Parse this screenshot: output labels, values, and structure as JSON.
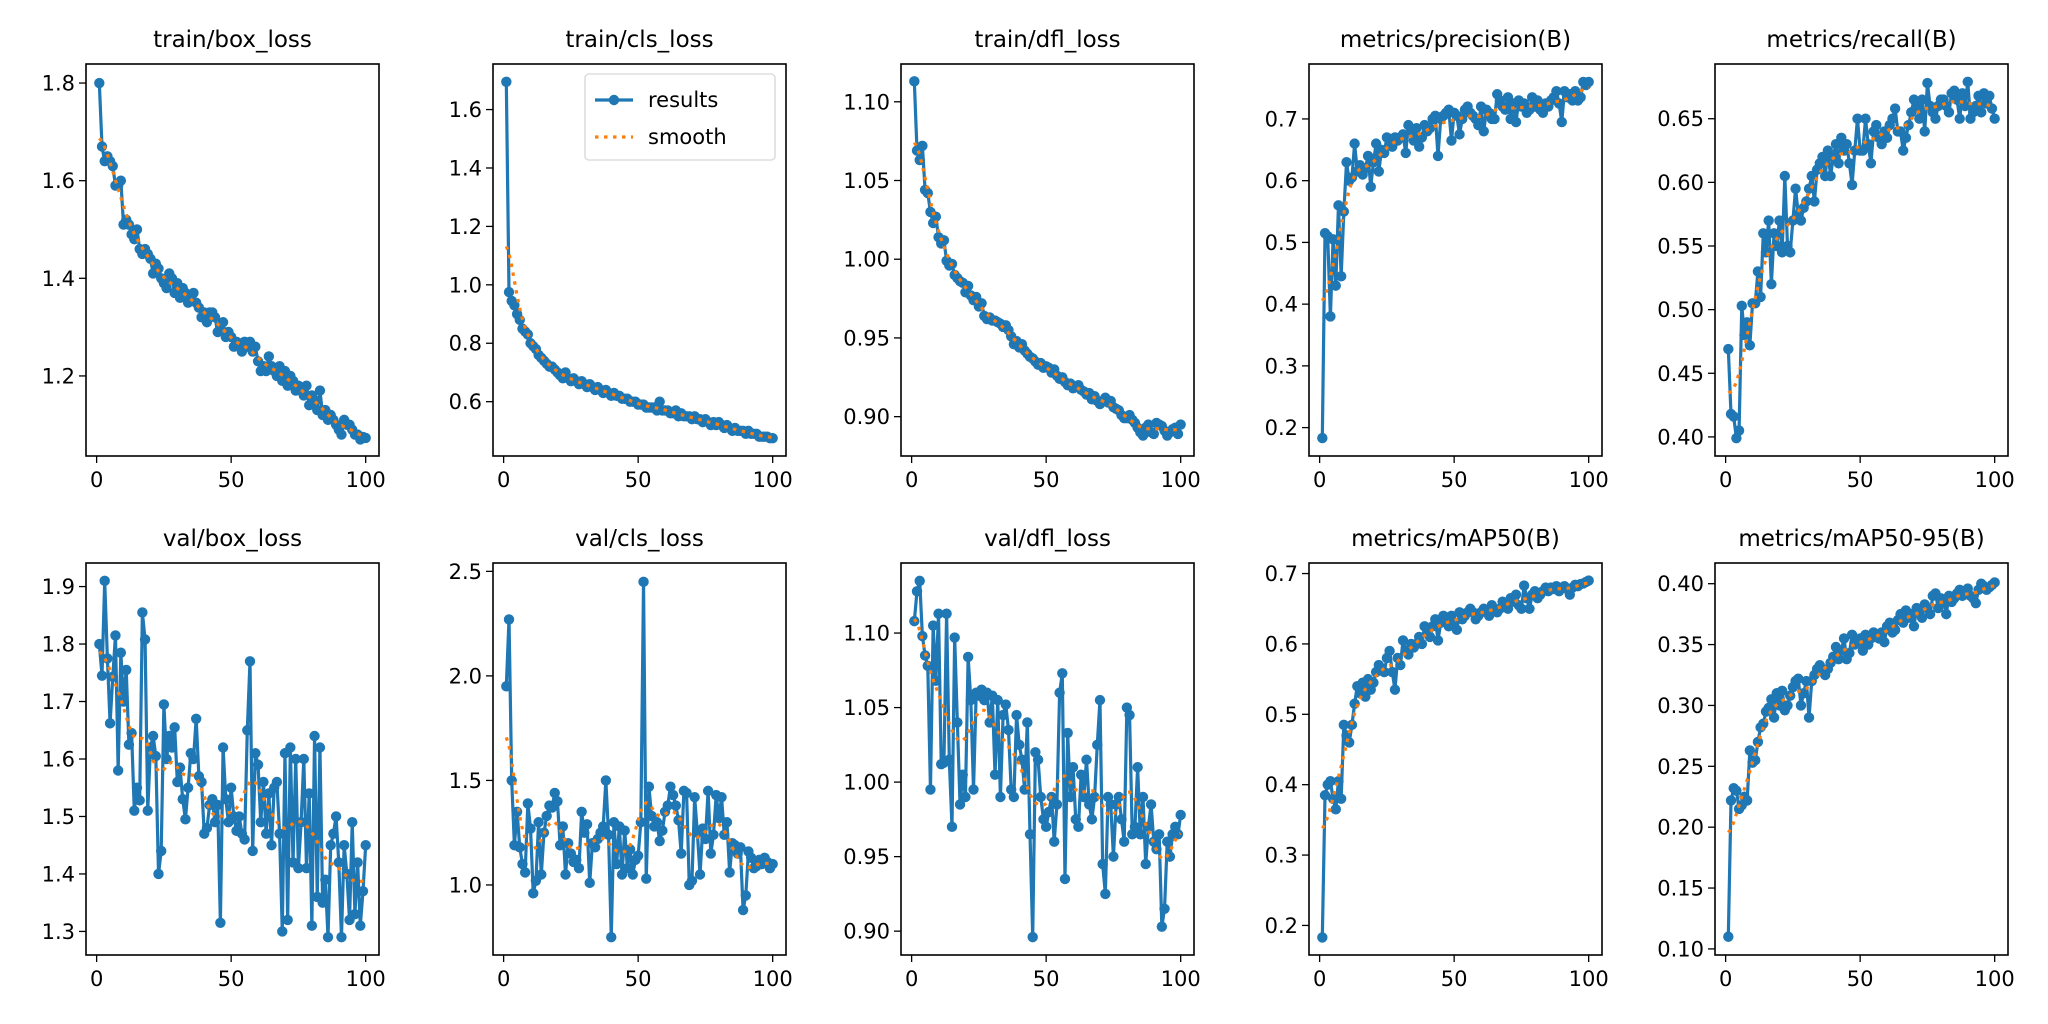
{
  "colors": {
    "results": "#1f77b4",
    "smooth": "#ff7f0e"
  },
  "legend": {
    "results_label": "results",
    "smooth_label": "smooth",
    "placement": "upper-right of train/cls_loss"
  },
  "chart_data": [
    {
      "type": "line",
      "title": "train/box_loss",
      "xlim": [
        -3.95,
        104.95
      ],
      "ylim": [
        1.036,
        1.839
      ],
      "xticks": [
        0,
        50,
        100
      ],
      "yticks": [
        1.2,
        1.4,
        1.6,
        1.8
      ],
      "ytick_labels": [
        "1.2",
        "1.4",
        "1.6",
        "1.8"
      ],
      "grid": false,
      "results": [
        1.8,
        1.67,
        1.64,
        1.65,
        1.64,
        1.63,
        1.59,
        1.59,
        1.6,
        1.51,
        1.52,
        1.51,
        1.49,
        1.48,
        1.5,
        1.46,
        1.45,
        1.46,
        1.45,
        1.44,
        1.41,
        1.43,
        1.42,
        1.4,
        1.39,
        1.38,
        1.41,
        1.4,
        1.37,
        1.39,
        1.36,
        1.38,
        1.37,
        1.35,
        1.36,
        1.37,
        1.35,
        1.34,
        1.32,
        1.33,
        1.31,
        1.33,
        1.33,
        1.32,
        1.29,
        1.3,
        1.31,
        1.28,
        1.29,
        1.28,
        1.26,
        1.27,
        1.26,
        1.25,
        1.27,
        1.26,
        1.27,
        1.25,
        1.26,
        1.23,
        1.21,
        1.22,
        1.21,
        1.24,
        1.22,
        1.21,
        1.2,
        1.22,
        1.19,
        1.21,
        1.18,
        1.2,
        1.19,
        1.17,
        1.18,
        1.17,
        1.16,
        1.18,
        1.14,
        1.16,
        1.15,
        1.13,
        1.17,
        1.12,
        1.13,
        1.11,
        1.12,
        1.11,
        1.1,
        1.09,
        1.08,
        1.11,
        1.1,
        1.1,
        1.09,
        1.08,
        1.08,
        1.07,
        1.075,
        1.073
      ]
    },
    {
      "type": "line",
      "title": "train/cls_loss",
      "xlim": [
        -3.95,
        104.95
      ],
      "ylim": [
        0.414,
        1.756
      ],
      "xticks": [
        0,
        50,
        100
      ],
      "yticks": [
        0.6,
        0.8,
        1.0,
        1.2,
        1.4,
        1.6
      ],
      "ytick_labels": [
        "0.6",
        "0.8",
        "1.0",
        "1.2",
        "1.4",
        "1.6"
      ],
      "grid": false,
      "legend": true,
      "results": [
        1.695,
        0.975,
        0.945,
        0.93,
        0.9,
        0.88,
        0.85,
        0.84,
        0.83,
        0.8,
        0.79,
        0.78,
        0.76,
        0.75,
        0.74,
        0.73,
        0.72,
        0.72,
        0.71,
        0.7,
        0.69,
        0.68,
        0.7,
        0.68,
        0.67,
        0.68,
        0.67,
        0.66,
        0.67,
        0.66,
        0.65,
        0.66,
        0.65,
        0.64,
        0.65,
        0.64,
        0.63,
        0.64,
        0.63,
        0.62,
        0.63,
        0.62,
        0.62,
        0.61,
        0.61,
        0.61,
        0.6,
        0.6,
        0.6,
        0.59,
        0.59,
        0.59,
        0.58,
        0.58,
        0.58,
        0.58,
        0.57,
        0.6,
        0.57,
        0.57,
        0.57,
        0.56,
        0.56,
        0.57,
        0.55,
        0.56,
        0.55,
        0.55,
        0.55,
        0.54,
        0.55,
        0.54,
        0.54,
        0.53,
        0.54,
        0.53,
        0.52,
        0.53,
        0.52,
        0.53,
        0.52,
        0.51,
        0.52,
        0.51,
        0.5,
        0.51,
        0.5,
        0.5,
        0.5,
        0.49,
        0.5,
        0.49,
        0.49,
        0.49,
        0.48,
        0.48,
        0.48,
        0.48,
        0.475,
        0.475
      ]
    },
    {
      "type": "line",
      "title": "train/dfl_loss",
      "xlim": [
        -3.95,
        104.95
      ],
      "ylim": [
        0.875,
        1.124
      ],
      "xticks": [
        0,
        50,
        100
      ],
      "yticks": [
        0.9,
        0.95,
        1.0,
        1.05,
        1.1
      ],
      "ytick_labels": [
        "0.90",
        "0.95",
        "1.00",
        "1.05",
        "1.10"
      ],
      "grid": false,
      "results": [
        1.113,
        1.069,
        1.063,
        1.072,
        1.044,
        1.042,
        1.03,
        1.023,
        1.027,
        1.014,
        1.01,
        1.012,
        0.999,
        0.996,
        0.997,
        0.99,
        0.988,
        0.986,
        0.985,
        0.979,
        0.983,
        0.977,
        0.974,
        0.976,
        0.97,
        0.972,
        0.964,
        0.962,
        0.963,
        0.961,
        0.961,
        0.96,
        0.959,
        0.957,
        0.958,
        0.955,
        0.951,
        0.946,
        0.948,
        0.944,
        0.946,
        0.942,
        0.94,
        0.938,
        0.937,
        0.935,
        0.933,
        0.934,
        0.931,
        0.932,
        0.931,
        0.928,
        0.93,
        0.926,
        0.924,
        0.925,
        0.922,
        0.92,
        0.921,
        0.918,
        0.919,
        0.92,
        0.917,
        0.916,
        0.914,
        0.915,
        0.911,
        0.913,
        0.91,
        0.908,
        0.91,
        0.912,
        0.909,
        0.91,
        0.906,
        0.905,
        0.904,
        0.901,
        0.899,
        0.899,
        0.901,
        0.898,
        0.896,
        0.893,
        0.89,
        0.888,
        0.893,
        0.895,
        0.89,
        0.889,
        0.896,
        0.895,
        0.894,
        0.891,
        0.888,
        0.89,
        0.892,
        0.893,
        0.889,
        0.895
      ]
    },
    {
      "type": "line",
      "title": "metrics/precision(B)",
      "xlim": [
        -3.95,
        104.95
      ],
      "ylim": [
        0.154,
        0.789
      ],
      "xticks": [
        0,
        50,
        100
      ],
      "yticks": [
        0.2,
        0.3,
        0.4,
        0.5,
        0.6,
        0.7
      ],
      "ytick_labels": [
        "0.2",
        "0.3",
        "0.4",
        "0.5",
        "0.6",
        "0.7"
      ],
      "grid": false,
      "results": [
        0.183,
        0.515,
        0.51,
        0.38,
        0.505,
        0.43,
        0.56,
        0.445,
        0.55,
        0.63,
        0.6,
        0.605,
        0.66,
        0.615,
        0.625,
        0.61,
        0.62,
        0.64,
        0.59,
        0.63,
        0.66,
        0.615,
        0.65,
        0.645,
        0.67,
        0.66,
        0.655,
        0.67,
        0.665,
        0.67,
        0.675,
        0.645,
        0.69,
        0.68,
        0.665,
        0.685,
        0.655,
        0.67,
        0.69,
        0.68,
        0.685,
        0.7,
        0.705,
        0.64,
        0.7,
        0.705,
        0.71,
        0.715,
        0.665,
        0.71,
        0.705,
        0.675,
        0.7,
        0.715,
        0.72,
        0.71,
        0.705,
        0.7,
        0.69,
        0.72,
        0.68,
        0.715,
        0.71,
        0.7,
        0.7,
        0.74,
        0.73,
        0.72,
        0.715,
        0.735,
        0.7,
        0.725,
        0.695,
        0.73,
        0.72,
        0.725,
        0.71,
        0.715,
        0.735,
        0.72,
        0.73,
        0.715,
        0.71,
        0.725,
        0.72,
        0.73,
        0.735,
        0.745,
        0.725,
        0.695,
        0.745,
        0.735,
        0.74,
        0.73,
        0.745,
        0.73,
        0.735,
        0.76,
        0.755,
        0.76
      ]
    },
    {
      "type": "line",
      "title": "metrics/recall(B)",
      "xlim": [
        -3.95,
        104.95
      ],
      "ylim": [
        0.385,
        0.693
      ],
      "xticks": [
        0,
        50,
        100
      ],
      "yticks": [
        0.4,
        0.45,
        0.5,
        0.55,
        0.6,
        0.65
      ],
      "ytick_labels": [
        "0.40",
        "0.45",
        "0.50",
        "0.55",
        "0.60",
        "0.65"
      ],
      "grid": false,
      "results": [
        0.469,
        0.418,
        0.416,
        0.399,
        0.405,
        0.503,
        0.48,
        0.49,
        0.472,
        0.505,
        0.505,
        0.53,
        0.51,
        0.56,
        0.545,
        0.57,
        0.52,
        0.56,
        0.55,
        0.57,
        0.545,
        0.605,
        0.55,
        0.545,
        0.57,
        0.595,
        0.575,
        0.57,
        0.58,
        0.585,
        0.595,
        0.605,
        0.585,
        0.61,
        0.615,
        0.62,
        0.605,
        0.625,
        0.605,
        0.62,
        0.63,
        0.615,
        0.635,
        0.625,
        0.63,
        0.615,
        0.598,
        0.625,
        0.65,
        0.625,
        0.625,
        0.65,
        0.63,
        0.615,
        0.64,
        0.645,
        0.635,
        0.63,
        0.64,
        0.635,
        0.645,
        0.65,
        0.658,
        0.64,
        0.64,
        0.625,
        0.635,
        0.645,
        0.655,
        0.665,
        0.66,
        0.65,
        0.665,
        0.64,
        0.678,
        0.66,
        0.655,
        0.65,
        0.66,
        0.665,
        0.665,
        0.66,
        0.655,
        0.67,
        0.672,
        0.665,
        0.65,
        0.67,
        0.66,
        0.679,
        0.65,
        0.655,
        0.66,
        0.668,
        0.655,
        0.67,
        0.662,
        0.668,
        0.658,
        0.65
      ]
    },
    {
      "type": "line",
      "title": "val/box_loss",
      "xlim": [
        -3.95,
        104.95
      ],
      "ylim": [
        1.259,
        1.941
      ],
      "xticks": [
        0,
        50,
        100
      ],
      "yticks": [
        1.3,
        1.4,
        1.5,
        1.6,
        1.7,
        1.8,
        1.9
      ],
      "ytick_labels": [
        "1.3",
        "1.4",
        "1.5",
        "1.6",
        "1.7",
        "1.8",
        "1.9"
      ],
      "grid": false,
      "results": [
        1.8,
        1.745,
        1.91,
        1.775,
        1.662,
        1.743,
        1.815,
        1.58,
        1.785,
        1.7,
        1.755,
        1.625,
        1.645,
        1.51,
        1.55,
        1.528,
        1.855,
        1.808,
        1.51,
        1.62,
        1.64,
        1.605,
        1.4,
        1.44,
        1.695,
        1.6,
        1.64,
        1.62,
        1.655,
        1.56,
        1.585,
        1.53,
        1.495,
        1.55,
        1.61,
        1.6,
        1.67,
        1.57,
        1.56,
        1.47,
        1.48,
        1.52,
        1.53,
        1.49,
        1.52,
        1.315,
        1.62,
        1.53,
        1.49,
        1.55,
        1.5,
        1.475,
        1.5,
        1.47,
        1.46,
        1.65,
        1.77,
        1.44,
        1.61,
        1.59,
        1.49,
        1.56,
        1.47,
        1.54,
        1.45,
        1.55,
        1.56,
        1.47,
        1.3,
        1.61,
        1.32,
        1.62,
        1.42,
        1.6,
        1.41,
        1.49,
        1.6,
        1.41,
        1.54,
        1.31,
        1.64,
        1.36,
        1.62,
        1.35,
        1.39,
        1.29,
        1.45,
        1.47,
        1.5,
        1.42,
        1.29,
        1.45,
        1.4,
        1.32,
        1.49,
        1.33,
        1.42,
        1.31,
        1.37,
        1.45
      ]
    },
    {
      "type": "line",
      "title": "val/cls_loss",
      "xlim": [
        -3.95,
        104.95
      ],
      "ylim": [
        0.665,
        2.54
      ],
      "xticks": [
        0,
        50,
        100
      ],
      "yticks": [
        1.0,
        1.5,
        2.0,
        2.5
      ],
      "ytick_labels": [
        "1.0",
        "1.5",
        "2.0",
        "2.5"
      ],
      "grid": false,
      "results": [
        1.95,
        2.27,
        1.5,
        1.19,
        1.35,
        1.18,
        1.1,
        1.06,
        1.39,
        1.27,
        0.96,
        1.02,
        1.3,
        1.05,
        1.25,
        1.33,
        1.38,
        1.37,
        1.44,
        1.4,
        1.19,
        1.28,
        1.05,
        1.2,
        1.15,
        1.11,
        1.12,
        1.08,
        1.35,
        1.25,
        1.29,
        1.01,
        1.2,
        1.18,
        1.22,
        1.25,
        1.28,
        1.5,
        1.24,
        0.75,
        1.3,
        1.1,
        1.28,
        1.05,
        1.26,
        1.08,
        1.17,
        1.05,
        1.12,
        1.14,
        1.3,
        2.45,
        1.03,
        1.47,
        1.33,
        1.28,
        1.3,
        1.21,
        1.26,
        1.35,
        1.38,
        1.47,
        1.43,
        1.38,
        1.31,
        1.15,
        1.45,
        1.44,
        1.0,
        1.02,
        1.42,
        1.25,
        1.05,
        1.27,
        1.22,
        1.45,
        1.15,
        1.24,
        1.43,
        1.32,
        1.42,
        1.24,
        1.3,
        1.06,
        1.2,
        1.19,
        1.15,
        1.18,
        0.88,
        0.95,
        1.16,
        1.13,
        1.08,
        1.09,
        1.12,
        1.1,
        1.13,
        1.11,
        1.08,
        1.1
      ]
    },
    {
      "type": "line",
      "title": "val/dfl_loss",
      "xlim": [
        -3.95,
        104.95
      ],
      "ylim": [
        0.884,
        1.147
      ],
      "xticks": [
        0,
        50,
        100
      ],
      "yticks": [
        0.9,
        0.95,
        1.0,
        1.05,
        1.1
      ],
      "ytick_labels": [
        "0.90",
        "0.95",
        "1.00",
        "1.05",
        "1.10"
      ],
      "grid": false,
      "results": [
        1.108,
        1.128,
        1.135,
        1.098,
        1.085,
        1.078,
        0.995,
        1.105,
        1.068,
        1.113,
        1.012,
        1.013,
        1.113,
        1.015,
        0.97,
        1.097,
        1.04,
        0.985,
        1.005,
        0.99,
        1.084,
        1.055,
        0.995,
        1.06,
        1.058,
        1.062,
        1.055,
        1.06,
        1.04,
        1.058,
        1.005,
        1.055,
        0.99,
        1.045,
        1.052,
        1.035,
        0.995,
        0.99,
        1.045,
        1.025,
        1.015,
        0.995,
        1.04,
        0.965,
        0.896,
        1.02,
        1.015,
        0.99,
        0.975,
        0.97,
        0.98,
        0.99,
        0.96,
        0.985,
        1.06,
        1.073,
        0.935,
        1.033,
        0.99,
        1.01,
        0.975,
        0.97,
        1.005,
        0.99,
        1.015,
        0.985,
        0.975,
        0.99,
        1.025,
        1.055,
        0.945,
        0.925,
        0.99,
        0.985,
        0.95,
        0.985,
        0.99,
        0.975,
        0.96,
        1.05,
        1.045,
        0.965,
        0.97,
        1.01,
        0.965,
        0.99,
        0.945,
        0.97,
        0.985,
        0.96,
        0.955,
        0.965,
        0.903,
        0.915,
        0.96,
        0.95,
        0.965,
        0.97,
        0.965,
        0.978
      ]
    },
    {
      "type": "line",
      "title": "metrics/mAP50(B)",
      "xlim": [
        -3.95,
        104.95
      ],
      "ylim": [
        0.158,
        0.715
      ],
      "xticks": [
        0,
        50,
        100
      ],
      "yticks": [
        0.2,
        0.3,
        0.4,
        0.5,
        0.6,
        0.7
      ],
      "ytick_labels": [
        "0.2",
        "0.3",
        "0.4",
        "0.5",
        "0.6",
        "0.7"
      ],
      "grid": false,
      "results": [
        0.183,
        0.385,
        0.4,
        0.405,
        0.38,
        0.365,
        0.405,
        0.38,
        0.485,
        0.47,
        0.46,
        0.485,
        0.515,
        0.54,
        0.53,
        0.545,
        0.525,
        0.55,
        0.535,
        0.545,
        0.56,
        0.57,
        0.565,
        0.56,
        0.58,
        0.59,
        0.56,
        0.535,
        0.58,
        0.57,
        0.605,
        0.59,
        0.585,
        0.6,
        0.595,
        0.6,
        0.61,
        0.6,
        0.625,
        0.615,
        0.61,
        0.625,
        0.635,
        0.605,
        0.63,
        0.64,
        0.635,
        0.625,
        0.64,
        0.63,
        0.62,
        0.645,
        0.635,
        0.64,
        0.645,
        0.65,
        0.645,
        0.635,
        0.64,
        0.645,
        0.65,
        0.645,
        0.64,
        0.655,
        0.65,
        0.645,
        0.65,
        0.66,
        0.655,
        0.65,
        0.665,
        0.66,
        0.67,
        0.655,
        0.65,
        0.683,
        0.665,
        0.65,
        0.67,
        0.675,
        0.665,
        0.67,
        0.675,
        0.68,
        0.675,
        0.68,
        0.678,
        0.682,
        0.675,
        0.68,
        0.682,
        0.678,
        0.67,
        0.68,
        0.684,
        0.682,
        0.685,
        0.686,
        0.688,
        0.69
      ]
    },
    {
      "type": "line",
      "title": "metrics/mAP50-95(B)",
      "xlim": [
        -3.95,
        104.95
      ],
      "ylim": [
        0.095,
        0.417
      ],
      "xticks": [
        0,
        50,
        100
      ],
      "yticks": [
        0.1,
        0.15,
        0.2,
        0.25,
        0.3,
        0.35,
        0.4
      ],
      "ytick_labels": [
        "0.10",
        "0.15",
        "0.20",
        "0.25",
        "0.30",
        "0.35",
        "0.40"
      ],
      "grid": false,
      "results": [
        0.11,
        0.222,
        0.232,
        0.23,
        0.215,
        0.218,
        0.225,
        0.222,
        0.263,
        0.253,
        0.255,
        0.27,
        0.282,
        0.285,
        0.295,
        0.298,
        0.305,
        0.29,
        0.31,
        0.3,
        0.312,
        0.296,
        0.3,
        0.308,
        0.315,
        0.32,
        0.322,
        0.3,
        0.31,
        0.32,
        0.29,
        0.32,
        0.325,
        0.33,
        0.333,
        0.328,
        0.325,
        0.33,
        0.335,
        0.34,
        0.348,
        0.338,
        0.345,
        0.355,
        0.338,
        0.343,
        0.358,
        0.35,
        0.352,
        0.355,
        0.345,
        0.358,
        0.35,
        0.355,
        0.36,
        0.357,
        0.355,
        0.36,
        0.352,
        0.365,
        0.368,
        0.36,
        0.362,
        0.37,
        0.375,
        0.368,
        0.378,
        0.372,
        0.375,
        0.365,
        0.38,
        0.378,
        0.372,
        0.383,
        0.38,
        0.375,
        0.39,
        0.392,
        0.38,
        0.388,
        0.385,
        0.375,
        0.39,
        0.385,
        0.388,
        0.392,
        0.395,
        0.39,
        0.393,
        0.396,
        0.39,
        0.388,
        0.384,
        0.395,
        0.4,
        0.398,
        0.395,
        0.397,
        0.399,
        0.401
      ]
    }
  ]
}
